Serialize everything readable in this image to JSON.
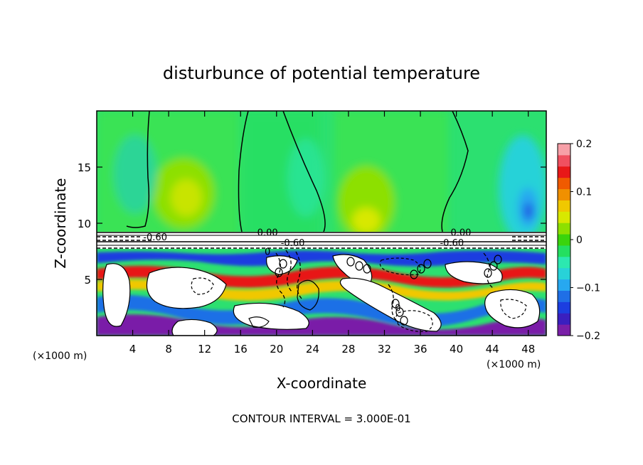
{
  "chart_data": {
    "type": "heatmap",
    "title": "disturbunce of potential temperature",
    "xlabel": "X-coordinate",
    "ylabel": "Z-coordinate",
    "x_unit": "(×1000 m)",
    "y_unit": "(×1000 m)",
    "footer": "CONTOUR INTERVAL = 3.000E-01",
    "xlim": [
      0,
      50
    ],
    "ylim": [
      0,
      20
    ],
    "x_ticks": [
      4,
      8,
      12,
      16,
      20,
      24,
      28,
      32,
      36,
      40,
      44,
      48
    ],
    "y_ticks": [
      5,
      10,
      15
    ],
    "colorbar": {
      "min": -0.2,
      "max": 0.2,
      "tick_values": [
        0.2,
        0.1,
        0,
        -0.1,
        -0.2
      ],
      "tick_labels": [
        "0.2",
        "0.1",
        "0",
        "−0.1",
        "−0.2"
      ],
      "colors": [
        "#7a1fa8",
        "#3a1fbf",
        "#1c3ee0",
        "#1f6fe6",
        "#27a8f0",
        "#28d2d8",
        "#2ce8b0",
        "#24df60",
        "#3ad40c",
        "#8de000",
        "#d8e800",
        "#f0c800",
        "#f09000",
        "#f05a00",
        "#e81818",
        "#f05060",
        "#f7a0a8"
      ]
    },
    "contour_labels": [
      {
        "text": "0.00",
        "x": 19.0,
        "z": 9.2
      },
      {
        "text": "0.00",
        "x": 40.5,
        "z": 9.2
      },
      {
        "text": "-0.60",
        "x": 21.8,
        "z": 8.3
      },
      {
        "text": "-0.60",
        "x": 39.5,
        "z": 8.3
      },
      {
        "text": "-0.60",
        "x": 6.5,
        "z": 8.8
      },
      {
        "text": "0",
        "x": 19.0,
        "z": 7.5
      },
      {
        "text": "0",
        "x": 33.5,
        "z": 2.5
      }
    ]
  }
}
